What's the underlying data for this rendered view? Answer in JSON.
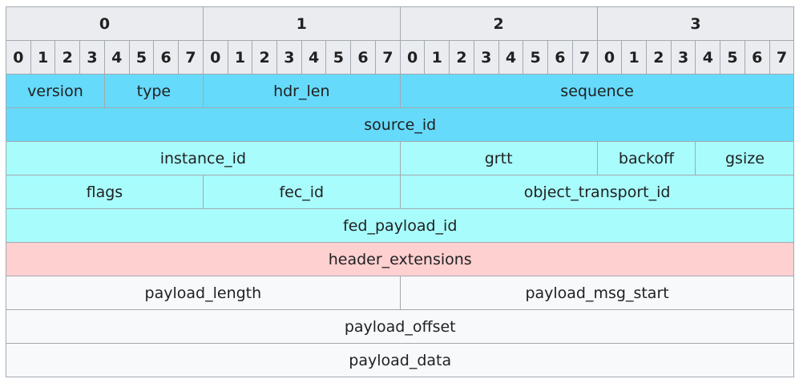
{
  "header": {
    "bytes": [
      "0",
      "1",
      "2",
      "3"
    ],
    "bits": [
      "0",
      "1",
      "2",
      "3",
      "4",
      "5",
      "6",
      "7",
      "0",
      "1",
      "2",
      "3",
      "4",
      "5",
      "6",
      "7",
      "0",
      "1",
      "2",
      "3",
      "4",
      "5",
      "6",
      "7",
      "0",
      "1",
      "2",
      "3",
      "4",
      "5",
      "6",
      "7"
    ]
  },
  "rows": [
    [
      "version",
      "type",
      "hdr_len",
      "sequence"
    ],
    [
      "source_id"
    ],
    [
      "instance_id",
      "grtt",
      "backoff",
      "gsize"
    ],
    [
      "flags",
      "fec_id",
      "object_transport_id"
    ],
    [
      "fed_payload_id"
    ],
    [
      "header_extensions"
    ],
    [
      "payload_length",
      "payload_msg_start"
    ],
    [
      "payload_offset"
    ],
    [
      "payload_data"
    ]
  ]
}
